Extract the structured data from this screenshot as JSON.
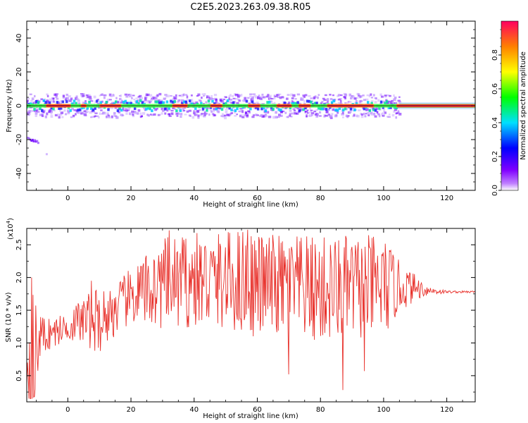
{
  "figure_title": "C2E5.2023.263.09.38.R05",
  "chart_data": [
    {
      "type": "heatmap",
      "title": "",
      "xlabel": "Height of straight line (km)",
      "ylabel": "Frequency (Hz)",
      "xlim": [
        -13,
        129
      ],
      "ylim": [
        -50,
        50
      ],
      "xticks": [
        0,
        20,
        40,
        60,
        80,
        100,
        120
      ],
      "yticks": [
        -40,
        -20,
        0,
        20,
        40
      ],
      "colorbar": {
        "label": "Normalized spectral amplitude",
        "range": [
          0,
          1
        ],
        "ticks": [
          0.0,
          0.2,
          0.4,
          0.6,
          0.8
        ],
        "colors": [
          "#ffffff",
          "#8000ff",
          "#0000ff",
          "#00e0ff",
          "#00ff00",
          "#ffff00",
          "#ff8000",
          "#ff0060"
        ]
      },
      "ridge": {
        "frequency_hz": 0,
        "x_start": -13,
        "x_end": 129,
        "clutter_end_km": 105,
        "high_amplitude_segments": [
          [
            -7,
            1
          ],
          [
            4,
            6
          ],
          [
            10,
            17
          ],
          [
            33,
            38
          ],
          [
            45,
            49
          ],
          [
            57,
            61
          ],
          [
            66,
            71
          ],
          [
            73,
            77
          ],
          [
            82,
            97
          ],
          [
            104,
            129
          ]
        ]
      },
      "secondary_blob": {
        "x": -12,
        "frequency_hz": -20
      }
    },
    {
      "type": "line",
      "title": "",
      "xlabel": "Height of straight line (km)",
      "ylabel": "SNR (10 * v/v)",
      "scale_label": "(x10",
      "scale_exp": "4",
      "scale_close": ")",
      "xlim": [
        -13,
        129
      ],
      "ylim": [
        1000,
        27500
      ],
      "xticks": [
        0,
        20,
        40,
        60,
        80,
        100,
        120
      ],
      "yticks": [
        5000,
        10000,
        15000,
        20000,
        25000
      ],
      "ytick_labels": [
        "0.5",
        "1.0",
        "1.5",
        "2.0",
        "2.5"
      ],
      "series": [
        {
          "color": "#e8302a",
          "envelope_x": [
            -13,
            -11,
            -9,
            -5,
            0,
            5,
            10,
            15,
            20,
            30,
            40,
            50,
            55,
            60,
            70,
            80,
            90,
            100,
            105,
            110,
            114,
            120,
            129
          ],
          "envelope_center": [
            7500,
            6000,
            11000,
            11500,
            12500,
            13500,
            13500,
            15000,
            17000,
            19000,
            19500,
            19500,
            19500,
            19000,
            18500,
            18000,
            18500,
            18500,
            18500,
            18500,
            18000,
            17800,
            17800
          ],
          "envelope_amplitude": [
            6000,
            12000,
            3500,
            2500,
            2000,
            4000,
            5000,
            4000,
            4500,
            7000,
            7500,
            7500,
            8500,
            8000,
            8000,
            8500,
            8000,
            8000,
            4000,
            2000,
            800,
            200,
            150
          ],
          "notable_points": [
            {
              "x": -11.5,
              "y": 20000
            },
            {
              "x": -10.5,
              "y": 1800
            },
            {
              "x": 7.5,
              "y": 19500
            },
            {
              "x": 32,
              "y": 27200
            },
            {
              "x": 57,
              "y": 27300
            },
            {
              "x": 70,
              "y": 5200
            },
            {
              "x": 87,
              "y": 2800
            },
            {
              "x": 94,
              "y": 5700
            },
            {
              "x": 114,
              "y": 17500
            },
            {
              "x": 129,
              "y": 17800
            }
          ]
        }
      ]
    }
  ]
}
